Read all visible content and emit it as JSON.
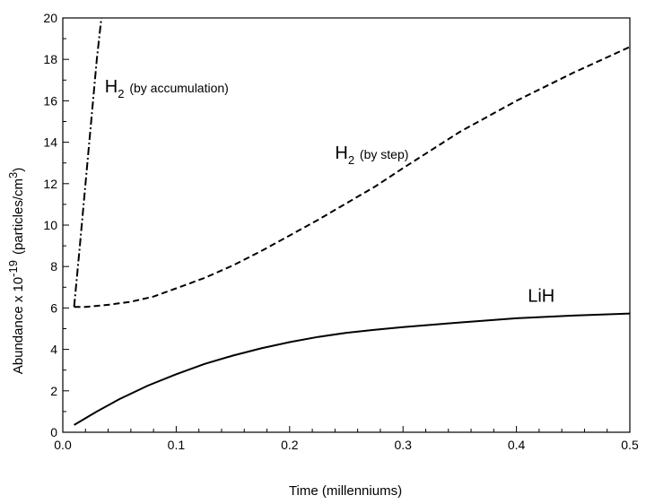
{
  "chart_data": {
    "type": "line",
    "title": "",
    "xlabel": "Time (millenniums)",
    "ylabel": {
      "main": "Abundance x 10",
      "exp": "-19",
      "unit_pre": "(particles/cm",
      "unit_exp": "3",
      "unit_post": ")"
    },
    "xlim": [
      0.0,
      0.5
    ],
    "ylim": [
      0,
      20
    ],
    "x_ticks": [
      0.0,
      0.1,
      0.2,
      0.3,
      0.4,
      0.5
    ],
    "x_tick_labels": [
      "0.0",
      "0.1",
      "0.2",
      "0.3",
      "0.4",
      "0.5"
    ],
    "y_ticks": [
      0,
      2,
      4,
      6,
      8,
      10,
      12,
      14,
      16,
      18,
      20
    ],
    "y_tick_labels": [
      "0",
      "2",
      "4",
      "6",
      "8",
      "10",
      "12",
      "14",
      "16",
      "18",
      "20"
    ],
    "grid": false,
    "series": [
      {
        "style": "solid",
        "x": [
          0.01,
          0.03,
          0.05,
          0.075,
          0.1,
          0.125,
          0.15,
          0.175,
          0.2,
          0.225,
          0.25,
          0.275,
          0.3,
          0.35,
          0.4,
          0.45,
          0.5
        ],
        "y": [
          0.35,
          1.0,
          1.6,
          2.25,
          2.8,
          3.3,
          3.7,
          4.05,
          4.35,
          4.6,
          4.8,
          4.95,
          5.08,
          5.3,
          5.5,
          5.63,
          5.73
        ]
      },
      {
        "style": "dashed",
        "x": [
          0.01,
          0.02,
          0.04,
          0.06,
          0.08,
          0.1,
          0.125,
          0.15,
          0.175,
          0.2,
          0.225,
          0.25,
          0.275,
          0.3,
          0.35,
          0.4,
          0.45,
          0.5
        ],
        "y": [
          6.05,
          6.05,
          6.15,
          6.3,
          6.55,
          6.95,
          7.45,
          8.05,
          8.75,
          9.5,
          10.25,
          11.05,
          11.85,
          12.75,
          14.5,
          16.0,
          17.35,
          18.6
        ]
      },
      {
        "style": "dashdot",
        "x": [
          0.01,
          0.015,
          0.02,
          0.025,
          0.03,
          0.034
        ],
        "y": [
          6.05,
          9.0,
          12.0,
          15.0,
          18.0,
          20.0
        ]
      }
    ],
    "annotations": [
      {
        "base": "H",
        "sub": "2",
        "rest": " (by accumulation)",
        "x": 0.037,
        "y": 16.4
      },
      {
        "base": "H",
        "sub": "2",
        "rest": " (by step)",
        "x": 0.24,
        "y": 13.2
      },
      {
        "base": "LiH",
        "sub": "",
        "rest": "",
        "x": 0.41,
        "y": 6.3
      }
    ]
  }
}
